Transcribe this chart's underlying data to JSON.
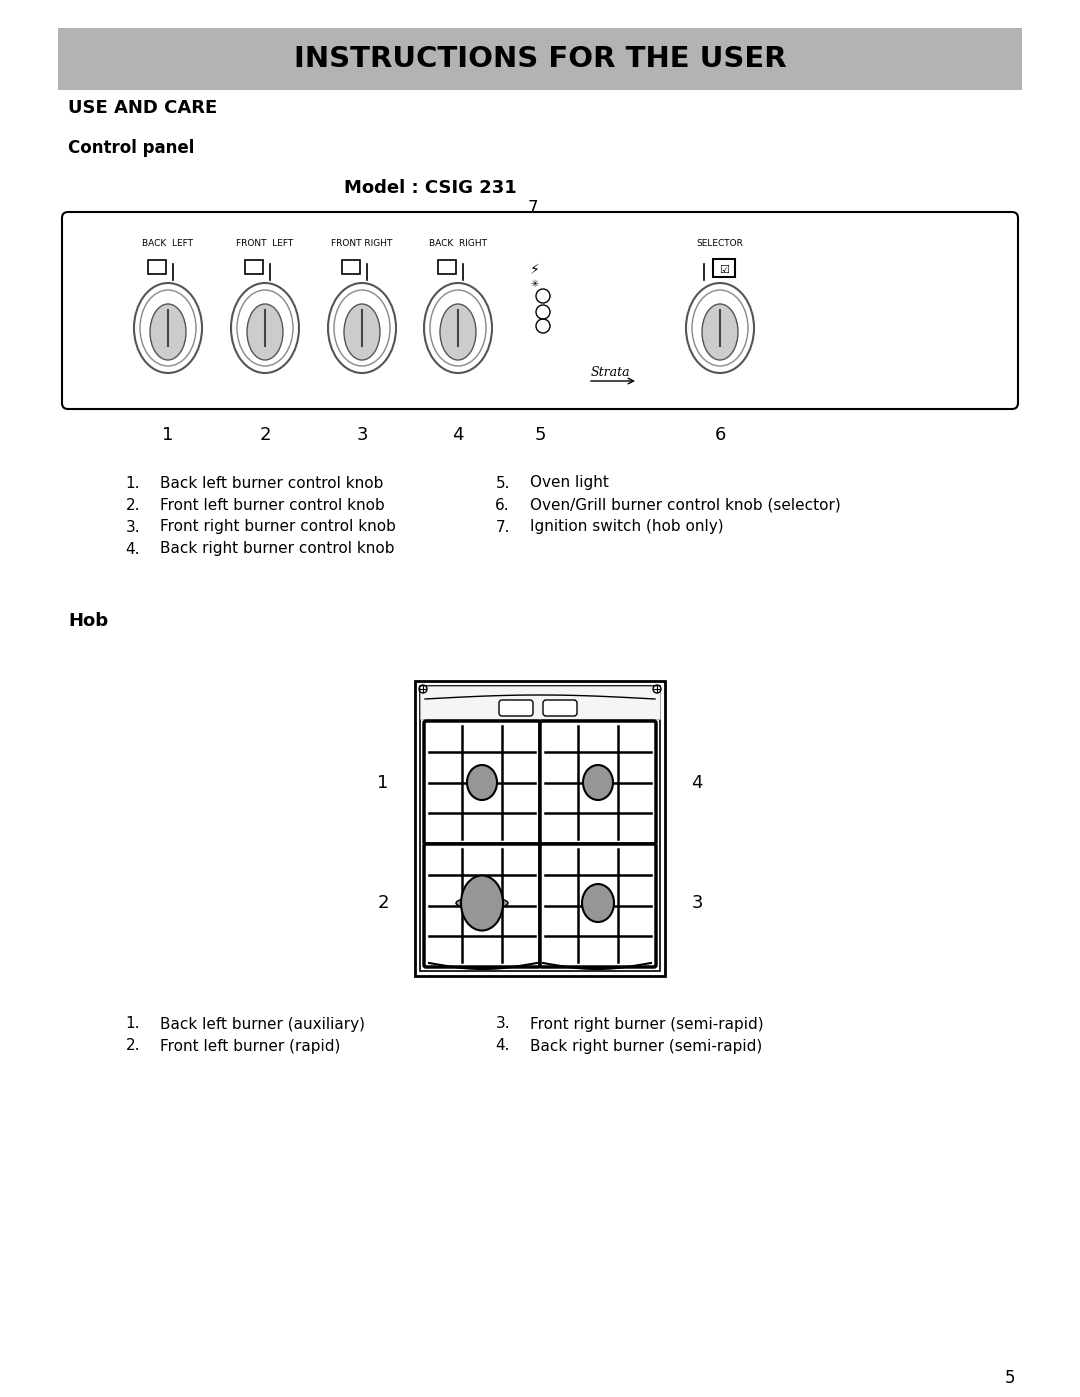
{
  "title_banner": "INSTRUCTIONS FOR THE USER",
  "banner_bg": "#b3b3b3",
  "section1": "USE AND CARE",
  "section2": "Control panel",
  "model_label": "Model : CSIG 231",
  "number7_label": "7",
  "knob_labels": [
    "BACK  LEFT",
    "FRONT  LEFT",
    "FRONT RIGHT",
    "BACK  RIGHT",
    "SELECTOR"
  ],
  "bottom_numbers": [
    "1",
    "2",
    "3",
    "4",
    "5",
    "6"
  ],
  "list1_items": [
    [
      "1.",
      "Back left burner control knob"
    ],
    [
      "2.",
      "Front left burner control knob"
    ],
    [
      "3.",
      "Front right burner control knob"
    ],
    [
      "4.",
      "Back right burner control knob"
    ]
  ],
  "list2_items": [
    [
      "5.",
      "Oven light"
    ],
    [
      "6.",
      "Oven/Grill burner control knob (selector)"
    ],
    [
      "7.",
      "Ignition switch (hob only)"
    ]
  ],
  "hob_label": "Hob",
  "hob_list1_items": [
    [
      "1.",
      "Back left burner (auxiliary)"
    ],
    [
      "2.",
      "Front left burner (rapid)"
    ]
  ],
  "hob_list2_items": [
    [
      "3.",
      "Front right burner (semi-rapid)"
    ],
    [
      "4.",
      "Back right burner (semi-rapid)"
    ]
  ],
  "page_number": "5",
  "strata_text": "Strata",
  "bg_color": "#ffffff",
  "text_color": "#000000",
  "burner_color": "#969696"
}
